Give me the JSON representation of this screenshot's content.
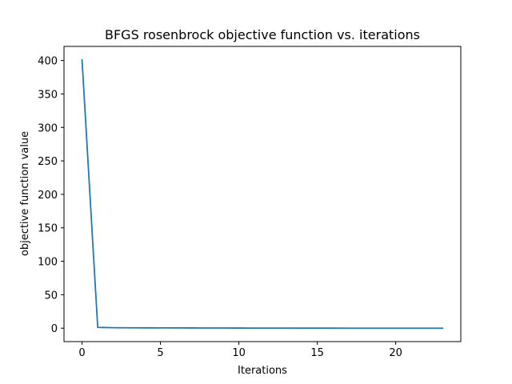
{
  "chart_data": {
    "type": "line",
    "title": "BFGS rosenbrock objective function vs. iterations",
    "xlabel": "Iterations",
    "ylabel": "objective function value",
    "xlim": [
      -1.15,
      24.15
    ],
    "ylim": [
      -20.05,
      421.05
    ],
    "xticks": [
      0,
      5,
      10,
      15,
      20
    ],
    "yticks": [
      0,
      50,
      100,
      150,
      200,
      250,
      300,
      350,
      400
    ],
    "grid": false,
    "legend": "none",
    "series": [
      {
        "color": "#1f77b4",
        "x": [
          0,
          1,
          2,
          3,
          4,
          5,
          6,
          7,
          8,
          9,
          10,
          11,
          12,
          13,
          14,
          15,
          16,
          17,
          18,
          19,
          20,
          21,
          22,
          23
        ],
        "y": [
          401,
          1.2,
          0.7,
          0.6,
          0.5,
          0.45,
          0.4,
          0.35,
          0.3,
          0.25,
          0.2,
          0.15,
          0.1,
          0.08,
          0.05,
          0.03,
          0.02,
          0.01,
          0.005,
          0.002,
          0.001,
          0.0005,
          0.0001,
          0.0
        ]
      }
    ]
  }
}
